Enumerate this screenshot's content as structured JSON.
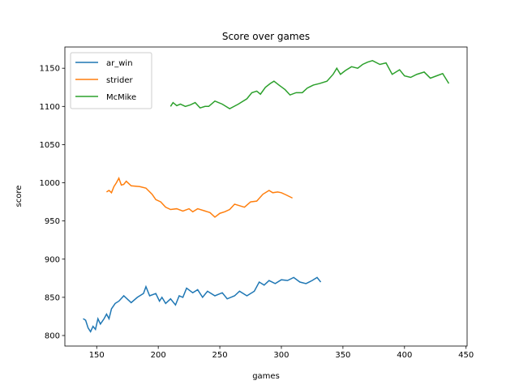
{
  "chart_data": {
    "type": "line",
    "title": "Score over games",
    "x_label": "games",
    "y_label": "score",
    "xlim": [
      124.15,
      450.85
    ],
    "ylim": [
      786.2,
      1177.8
    ],
    "xticks": [
      150,
      200,
      250,
      300,
      350,
      400,
      450
    ],
    "yticks": [
      800,
      850,
      900,
      950,
      1000,
      1050,
      1100,
      1150
    ],
    "legend": "upper left",
    "series": [
      {
        "name": "ar_win",
        "color": "#1f77b4",
        "x": [
          139,
          141,
          143,
          145,
          147,
          149,
          151,
          153,
          156,
          158,
          160,
          162,
          165,
          168,
          172,
          178,
          183,
          188,
          190,
          193,
          198,
          201,
          203,
          206,
          210,
          214,
          217,
          220,
          223,
          228,
          232,
          236,
          240,
          246,
          252,
          256,
          262,
          266,
          272,
          278,
          282,
          286,
          290,
          295,
          300,
          305,
          310,
          315,
          320,
          325,
          329,
          332
        ],
        "values": [
          822,
          820,
          810,
          805,
          812,
          808,
          822,
          815,
          822,
          828,
          822,
          835,
          842,
          845,
          852,
          843,
          850,
          855,
          864,
          852,
          855,
          845,
          850,
          842,
          848,
          840,
          852,
          850,
          862,
          856,
          860,
          850,
          858,
          852,
          856,
          848,
          852,
          858,
          852,
          858,
          870,
          866,
          872,
          868,
          873,
          872,
          876,
          870,
          868,
          872,
          876,
          870
        ]
      },
      {
        "name": "strider",
        "color": "#ff7f0e",
        "x": [
          158,
          160,
          162,
          164,
          166,
          168,
          170,
          172,
          174,
          178,
          185,
          190,
          195,
          198,
          202,
          206,
          210,
          215,
          220,
          225,
          228,
          232,
          238,
          242,
          246,
          250,
          254,
          258,
          262,
          266,
          270,
          275,
          280,
          285,
          290,
          293,
          297,
          300,
          304,
          309
        ],
        "values": [
          988,
          990,
          987,
          995,
          1000,
          1006,
          997,
          998,
          1002,
          996,
          995,
          993,
          985,
          978,
          975,
          968,
          965,
          966,
          963,
          966,
          962,
          966,
          963,
          961,
          955,
          960,
          962,
          965,
          972,
          970,
          968,
          975,
          976,
          985,
          990,
          987,
          988,
          987,
          984,
          980
        ]
      },
      {
        "name": "McMike",
        "color": "#2ca02c",
        "x": [
          210,
          212,
          215,
          218,
          222,
          226,
          230,
          234,
          238,
          241,
          246,
          252,
          258,
          265,
          272,
          276,
          280,
          283,
          287,
          291,
          294,
          298,
          303,
          307,
          312,
          317,
          321,
          326,
          331,
          337,
          342,
          345,
          348,
          352,
          357,
          362,
          366,
          370,
          374,
          380,
          385,
          390,
          396,
          400,
          405,
          410,
          416,
          421,
          426,
          431,
          436
        ],
        "values": [
          1100,
          1105,
          1101,
          1103,
          1100,
          1102,
          1105,
          1098,
          1100,
          1100,
          1107,
          1103,
          1097,
          1103,
          1110,
          1118,
          1120,
          1116,
          1125,
          1130,
          1133,
          1128,
          1122,
          1115,
          1118,
          1118,
          1124,
          1128,
          1130,
          1133,
          1142,
          1150,
          1142,
          1147,
          1152,
          1150,
          1155,
          1158,
          1160,
          1155,
          1157,
          1142,
          1148,
          1140,
          1138,
          1142,
          1145,
          1137,
          1140,
          1143,
          1130
        ]
      }
    ]
  }
}
